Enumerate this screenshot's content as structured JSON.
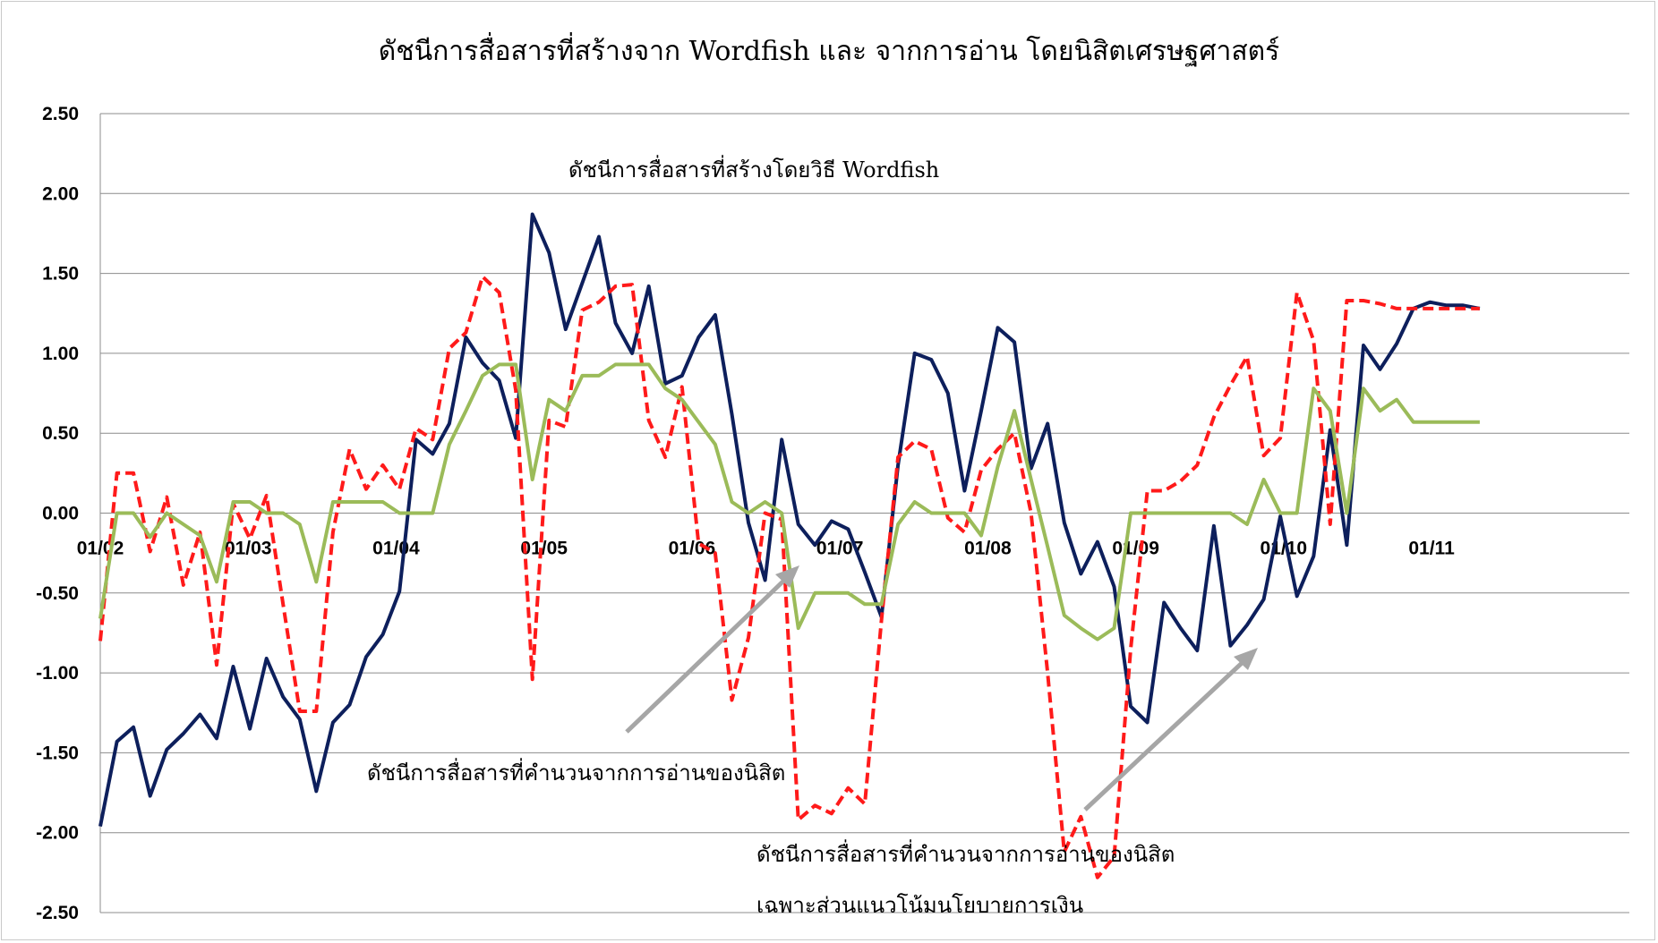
{
  "chart_data": {
    "type": "line",
    "title": "ดัชนีการสื่อสารที่สร้างจาก Wordfish และ จากการอ่าน โดยนิสิตเศรษฐศาสตร์",
    "xlabel": "",
    "ylabel": "",
    "ylim": [
      -2.5,
      2.5
    ],
    "y_ticks": [
      "2.50",
      "2.00",
      "1.50",
      "1.00",
      "0.50",
      "0.00",
      "-0.50",
      "-1.00",
      "-1.50",
      "-2.00",
      "-2.50"
    ],
    "x_ticks": [
      "01/02",
      "01/03",
      "01/04",
      "01/05",
      "01/06",
      "01/07",
      "01/08",
      "01/09",
      "01/10",
      "01/11"
    ],
    "x_range": [
      0,
      92
    ],
    "x_tick_positions": [
      0,
      8.9,
      17.8,
      26.7,
      35.6,
      44.5,
      53.4,
      62.3,
      71.2,
      80.1
    ],
    "grid": true,
    "legend": "none",
    "series": [
      {
        "color": "#0d1f5c",
        "style": "solid",
        "x": [
          0,
          1,
          2,
          3,
          4,
          5,
          6,
          7,
          8,
          9,
          10,
          11,
          12,
          13,
          14,
          15,
          16,
          17,
          18,
          19,
          20,
          21,
          22,
          23,
          24,
          25,
          26,
          27,
          28,
          29,
          30,
          31,
          32,
          33,
          34,
          35,
          36,
          37,
          38,
          39,
          40,
          41,
          42,
          43,
          44,
          45,
          46,
          47,
          48,
          49,
          50,
          51,
          52,
          53,
          54,
          55,
          56,
          57,
          58,
          59,
          60,
          61,
          62,
          63,
          64,
          65,
          66,
          67,
          68,
          69,
          70,
          71,
          72,
          73,
          74,
          75,
          76,
          77,
          78,
          79,
          80,
          81,
          82,
          83
        ],
        "values": [
          -1.96,
          -1.43,
          -1.34,
          -1.77,
          -1.48,
          -1.38,
          -1.26,
          -1.41,
          -0.96,
          -1.35,
          -0.91,
          -1.15,
          -1.29,
          -1.74,
          -1.31,
          -1.2,
          -0.9,
          -0.76,
          -0.49,
          0.46,
          0.37,
          0.56,
          1.1,
          0.94,
          0.83,
          0.47,
          1.87,
          1.63,
          1.15,
          1.44,
          1.73,
          1.19,
          1.0,
          1.42,
          0.81,
          0.86,
          1.1,
          1.24,
          0.62,
          -0.06,
          -0.42,
          0.46,
          -0.07,
          -0.2,
          -0.05,
          -0.1,
          -0.37,
          -0.65,
          0.3,
          1.0,
          0.96,
          0.75,
          0.14,
          0.64,
          1.16,
          1.07,
          0.28,
          0.56,
          -0.06,
          -0.38,
          -0.18,
          -0.46,
          -1.21,
          -1.31,
          -0.56,
          -0.72,
          -0.86,
          -0.08,
          -0.83,
          -0.7,
          -0.54,
          -0.02,
          -0.52,
          -0.27,
          0.52,
          -0.2,
          1.05,
          0.9,
          1.06,
          1.28,
          1.32,
          1.3,
          1.3,
          1.28
        ]
      },
      {
        "color": "#ff1a1a",
        "style": "dashed",
        "x": [
          0,
          1,
          2,
          3,
          4,
          5,
          6,
          7,
          8,
          9,
          10,
          11,
          12,
          13,
          14,
          15,
          16,
          17,
          18,
          19,
          20,
          21,
          22,
          23,
          24,
          25,
          26,
          27,
          28,
          29,
          30,
          31,
          32,
          33,
          34,
          35,
          36,
          37,
          38,
          39,
          40,
          41,
          42,
          43,
          44,
          45,
          46,
          47,
          48,
          49,
          50,
          51,
          52,
          53,
          54,
          55,
          56,
          57,
          58,
          59,
          60,
          61,
          62,
          63,
          64,
          65,
          66,
          67,
          68,
          69,
          70,
          71,
          72,
          73,
          74,
          75,
          76,
          77,
          78,
          79,
          80,
          81,
          82,
          83
        ],
        "values": [
          -0.8,
          0.25,
          0.25,
          -0.24,
          0.1,
          -0.45,
          -0.12,
          -0.95,
          0.06,
          -0.16,
          0.11,
          -0.57,
          -1.24,
          -1.24,
          -0.12,
          0.4,
          0.15,
          0.3,
          0.15,
          0.53,
          0.46,
          1.03,
          1.13,
          1.48,
          1.38,
          0.77,
          -1.04,
          0.58,
          0.54,
          1.27,
          1.32,
          1.42,
          1.43,
          0.58,
          0.35,
          0.79,
          -0.19,
          -0.25,
          -1.17,
          -0.78,
          0.0,
          -0.04,
          -1.92,
          -1.83,
          -1.88,
          -1.72,
          -1.82,
          -0.67,
          0.35,
          0.45,
          0.4,
          -0.03,
          -0.12,
          0.27,
          0.4,
          0.5,
          0.0,
          -1.0,
          -2.12,
          -1.9,
          -2.28,
          -2.15,
          -0.85,
          0.14,
          0.14,
          0.2,
          0.3,
          0.6,
          0.8,
          0.98,
          0.36,
          0.47,
          1.38,
          1.08,
          -0.07,
          1.33,
          1.33,
          1.31,
          1.28,
          1.28,
          1.28,
          1.28,
          1.28,
          1.28
        ]
      },
      {
        "color": "#9bbb59",
        "style": "solid",
        "x": [
          0,
          1,
          2,
          3,
          4,
          5,
          6,
          7,
          8,
          9,
          10,
          11,
          12,
          13,
          14,
          15,
          16,
          17,
          18,
          19,
          20,
          21,
          22,
          23,
          24,
          25,
          26,
          27,
          28,
          29,
          30,
          31,
          32,
          33,
          34,
          35,
          36,
          37,
          38,
          39,
          40,
          41,
          42,
          43,
          44,
          45,
          46,
          47,
          48,
          49,
          50,
          51,
          52,
          53,
          54,
          55,
          56,
          57,
          58,
          59,
          60,
          61,
          62,
          63,
          64,
          65,
          66,
          67,
          68,
          69,
          70,
          71,
          72,
          73,
          74,
          75,
          76,
          77,
          78,
          79,
          80,
          81,
          82,
          83
        ],
        "values": [
          -0.66,
          0.0,
          0.0,
          -0.15,
          0.0,
          -0.07,
          -0.14,
          -0.43,
          0.07,
          0.07,
          0.0,
          0.0,
          -0.07,
          -0.43,
          0.07,
          0.07,
          0.07,
          0.07,
          0.0,
          0.0,
          0.0,
          0.43,
          0.64,
          0.86,
          0.93,
          0.93,
          0.21,
          0.71,
          0.64,
          0.86,
          0.86,
          0.93,
          0.93,
          0.93,
          0.78,
          0.71,
          0.57,
          0.43,
          0.07,
          0.0,
          0.07,
          0.0,
          -0.72,
          -0.5,
          -0.5,
          -0.5,
          -0.57,
          -0.57,
          -0.07,
          0.07,
          0.0,
          0.0,
          0.0,
          -0.14,
          0.29,
          0.64,
          0.21,
          -0.21,
          -0.64,
          -0.72,
          -0.79,
          -0.72,
          0.0,
          0.0,
          0.0,
          0.0,
          0.0,
          0.0,
          0.0,
          -0.07,
          0.21,
          0.0,
          0.0,
          0.78,
          0.64,
          0.0,
          0.78,
          0.64,
          0.71,
          0.57,
          0.57,
          0.57,
          0.57,
          0.57
        ]
      }
    ],
    "annotations": [
      "ดัชนีการสื่อสารที่สร้างโดยวิธี Wordfish",
      "ดัชนีการสื่อสารที่คำนวนจากการอ่านของนิสิต",
      "ดัชนีการสื่อสารที่คำนวนจากการอ่านของนิสิต",
      "เฉพาะส่วนแนวโน้มนโยบายการเงิน"
    ]
  }
}
